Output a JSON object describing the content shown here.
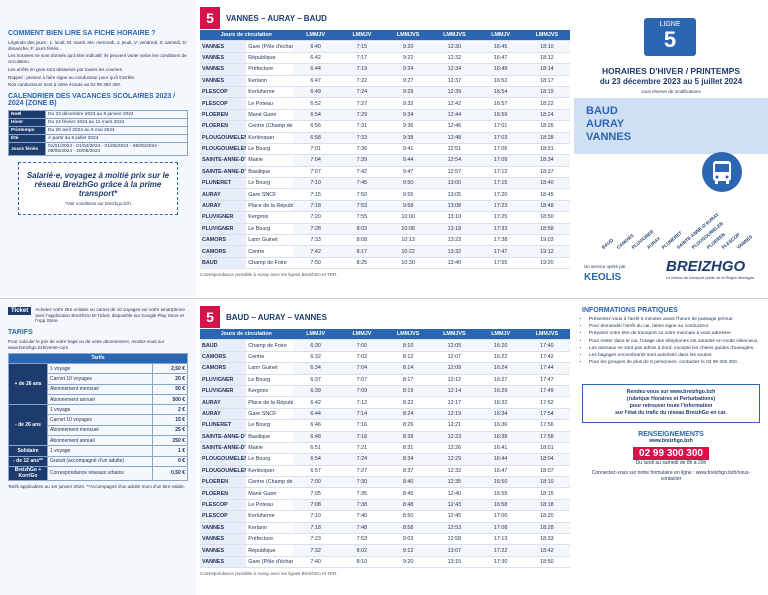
{
  "top": {
    "left": {
      "title": "COMMENT BIEN LIRE SA FICHE HORAIRE ?",
      "paragraphs": [
        "Légende des jours : L: lundi, M: mardi, Me: mercredi, J: jeudi, V: vendredi, S: samedi, D: dimanche, F: jours fériés.",
        "Les horaires ne sont donnés qu'à titre indicatif, ils peuvent varier selon les conditions de circulation.",
        "Les arrêts en gras sont desservis par toutes les courses.",
        "Rappel : pensez à faire signe au conducteur pour qu'il s'arrête.",
        "Nos conducteurs sont à votre écoute au 02 99 300 300."
      ],
      "calendar_title": "CALENDRIER DES VACANCES SCOLAIRES 2023 / 2024 (ZONE B)",
      "calendar": [
        [
          "Noël",
          "Du 23 décembre 2023 au 8 janvier 2024"
        ],
        [
          "Hiver",
          "Du 24 février 2024 au 11 mars 2024"
        ],
        [
          "Printemps",
          "Du 20 avril 2024 au 6 mai 2024"
        ],
        [
          "Été",
          "À partir du 6 juillet 2024"
        ],
        [
          "Jours fériés",
          "01/01/2024 - 01/04/2024 - 01/05/2024 - 08/05/2024 - 09/05/2024 - 20/05/2024"
        ]
      ],
      "ad": {
        "title": "Salarié·e, voyagez à moitié prix sur le réseau BreizhGo grâce à la prime transport*",
        "note": "*Voir conditions sur breizhgo.bzh"
      }
    },
    "timetable": {
      "line": "5",
      "title": "VANNES – AURAY – BAUD",
      "days_label": "Jours de circulation",
      "stops": [
        [
          "VANNES",
          "Gare (Pôle d'échanges)"
        ],
        [
          "VANNES",
          "République"
        ],
        [
          "VANNES",
          "Préfecture"
        ],
        [
          "VANNES",
          "Kerlann"
        ],
        [
          "PLESCOP",
          "Kerluherne"
        ],
        [
          "PLESCOP",
          "Le Poteau"
        ],
        [
          "PLOEREN",
          "Mané Guen"
        ],
        [
          "PLOEREN",
          "Centre (Champ de Foire)"
        ],
        [
          "PLOUGOUMELEN",
          "Kerlécquer"
        ],
        [
          "PLOUGOUMELEN",
          "Le Bourg"
        ],
        [
          "SAINTE-ANNE-D'AURAY",
          "Mairie"
        ],
        [
          "SAINTE-ANNE-D'AURAY",
          "Basilique"
        ],
        [
          "PLUNERET",
          "Le Bourg"
        ],
        [
          "AURAY",
          "Gare SNCF"
        ],
        [
          "AURAY",
          "Place de la République"
        ],
        [
          "PLUVIGNER",
          "Kergroix"
        ],
        [
          "PLUVIGNER",
          "Le Bourg"
        ],
        [
          "CAMORS",
          "Lann Guinet"
        ],
        [
          "CAMORS",
          "Centre"
        ],
        [
          "BAUD",
          "Champ de Foire"
        ]
      ],
      "courses": [
        {
          "days": "LMMJV",
          "times": [
            "6:40",
            "6:42",
            "6:44",
            "6:47",
            "6:49",
            "6:52",
            "6:54",
            "6:56",
            "6:58",
            "7:01",
            "7:04",
            "7:07",
            "7:10",
            "7:15",
            "7:18",
            "7:20",
            "7:28",
            "7:33",
            "7:42",
            "7:50"
          ]
        },
        {
          "days": "LMMJV",
          "times": [
            "7:15",
            "7:17",
            "7:19",
            "7:22",
            "7:24",
            "7:27",
            "7:29",
            "7:31",
            "7:33",
            "7:36",
            "7:39",
            "7:42",
            "7:45",
            "7:50",
            "7:53",
            "7:55",
            "8:03",
            "8:08",
            "8:17",
            "8:25"
          ]
        },
        {
          "days": "LMMJVS",
          "times": [
            "9:20",
            "9:22",
            "9:24",
            "9:27",
            "9:29",
            "9:32",
            "9:34",
            "9:36",
            "9:38",
            "9:41",
            "9:44",
            "9:47",
            "9:50",
            "9:55",
            "9:58",
            "10:00",
            "10:08",
            "10:13",
            "10:22",
            "10:30"
          ]
        },
        {
          "days": "LMMJVS",
          "times": [
            "12:30",
            "12:32",
            "12:34",
            "12:37",
            "12:39",
            "12:42",
            "12:44",
            "12:46",
            "12:48",
            "12:51",
            "12:54",
            "12:57",
            "13:00",
            "13:05",
            "13:08",
            "13:10",
            "13:18",
            "13:23",
            "13:32",
            "13:40"
          ]
        },
        {
          "days": "LMMJV",
          "times": [
            "16:45",
            "16:47",
            "16:49",
            "16:52",
            "16:54",
            "16:57",
            "16:59",
            "17:01",
            "17:03",
            "17:06",
            "17:09",
            "17:12",
            "17:15",
            "17:20",
            "17:23",
            "17:25",
            "17:33",
            "17:38",
            "17:47",
            "17:55"
          ]
        },
        {
          "days": "LMMJVS",
          "times": [
            "18:10",
            "18:12",
            "18:14",
            "18:17",
            "18:19",
            "18:22",
            "18:24",
            "18:26",
            "18:28",
            "18:31",
            "18:34",
            "18:37",
            "18:40",
            "18:45",
            "18:48",
            "18:50",
            "18:58",
            "19:03",
            "19:12",
            "19:20"
          ]
        }
      ],
      "footnote": "Correspondance possible à Auray avec les lignes BreizhGo et TER."
    },
    "cover": {
      "line_label": "LIGNE",
      "line": "5",
      "title": "HORAIRES D'HIVER / PRINTEMPS",
      "period": "du 23 décembre 2023 au 5 juillet 2024",
      "disclaimer": "sous réserve de modifications",
      "destinations": [
        "BAUD",
        "AURAY",
        "VANNES"
      ],
      "stops": [
        "BAUD",
        "CAMORS",
        "PLUVIGNER",
        "AURAY",
        "PLUNERET",
        "SAINTE-ANNE-D'AURAY",
        "PLOUGOUMELEN",
        "PLOEREN",
        "PLESCOP",
        "VANNES"
      ],
      "operator_label": "Un service opéré par",
      "operator": "KEOLIS",
      "brand": "BREIZHGO",
      "tagline": "Le réseau de transport public de la Région Bretagne"
    }
  },
  "bottom": {
    "left": {
      "ticket_title": "Ticket",
      "ticket_text": "Achetez votre titre unitaire ou carnet de 10 voyages sur votre smartphone avec l'application BreizhGo M-Ticket, disponible sur Google Play Store et l'App Store.",
      "tariffs_title": "TARIFS",
      "tariffs_text": "Pour calculer le prix de votre trajet ou de votre abonnement, rendez-vous sur www.breizhgo.bzh/vente-cars",
      "price_header": "Tarifs",
      "groups": [
        {
          "group": "+ de 26 ans",
          "items": [
            {
              "product": "1 voyage",
              "price": "2,50 €"
            },
            {
              "product": "Carnet 10 voyages",
              "price": "20 €"
            },
            {
              "product": "Abonnement mensuel",
              "price": "50 €"
            },
            {
              "product": "Abonnement annuel",
              "price": "500 €"
            }
          ]
        },
        {
          "group": "- de 26 ans",
          "items": [
            {
              "product": "1 voyage",
              "price": "2 €"
            },
            {
              "product": "Carnet 10 voyages",
              "price": "15 €"
            },
            {
              "product": "Abonnement mensuel",
              "price": "25 €"
            },
            {
              "product": "Abonnement annuel",
              "price": "250 €"
            }
          ]
        },
        {
          "group": "Solidaire",
          "items": [
            {
              "product": "1 voyage",
              "price": "1 €"
            }
          ]
        },
        {
          "group": "- de 12 ans**",
          "items": [
            {
              "product": "Gratuit (accompagné d'un adulte)",
              "price": "0 €"
            }
          ]
        },
        {
          "group": "BreizhGo + KorriGo",
          "items": [
            {
              "product": "Correspondance réseaux urbains",
              "price": "0,50 €"
            }
          ]
        }
      ],
      "footnote": "Tarifs applicables au 1er janvier 2024. **Accompagné d'un adulte muni d'un titre valide."
    },
    "timetable": {
      "line": "5",
      "title": "BAUD – AURAY – VANNES",
      "days_label": "Jours de circulation",
      "stops": [
        [
          "BAUD",
          "Champ de Foire"
        ],
        [
          "CAMORS",
          "Centre"
        ],
        [
          "CAMORS",
          "Lann Guinet"
        ],
        [
          "PLUVIGNER",
          "Le Bourg"
        ],
        [
          "PLUVIGNER",
          "Kergroix"
        ],
        [
          "AURAY",
          "Place de la République"
        ],
        [
          "AURAY",
          "Gare SNCF"
        ],
        [
          "PLUNERET",
          "Le Bourg"
        ],
        [
          "SAINTE-ANNE-D'AURAY",
          "Basilique"
        ],
        [
          "SAINTE-ANNE-D'AURAY",
          "Mairie"
        ],
        [
          "PLOUGOUMELEN",
          "Le Bourg"
        ],
        [
          "PLOUGOUMELEN",
          "Kerlécquer"
        ],
        [
          "PLOEREN",
          "Centre (Champ de Foire)"
        ],
        [
          "PLOEREN",
          "Mané Guen"
        ],
        [
          "PLESCOP",
          "Le Poteau"
        ],
        [
          "PLESCOP",
          "Kerluherne"
        ],
        [
          "VANNES",
          "Kerlann"
        ],
        [
          "VANNES",
          "Préfecture"
        ],
        [
          "VANNES",
          "République"
        ],
        [
          "VANNES",
          "Gare (Pôle d'échanges)"
        ]
      ],
      "courses": [
        {
          "days": "LMMJV",
          "times": [
            "6:30",
            "6:32",
            "6:34",
            "6:37",
            "6:39",
            "6:42",
            "6:44",
            "6:46",
            "6:48",
            "6:51",
            "6:54",
            "6:57",
            "7:00",
            "7:05",
            "7:08",
            "7:10",
            "7:18",
            "7:23",
            "7:32",
            "7:40"
          ]
        },
        {
          "days": "LMMJV",
          "times": [
            "7:00",
            "7:02",
            "7:04",
            "7:07",
            "7:09",
            "7:12",
            "7:14",
            "7:16",
            "7:18",
            "7:21",
            "7:24",
            "7:27",
            "7:30",
            "7:35",
            "7:38",
            "7:40",
            "7:48",
            "7:53",
            "8:02",
            "8:10"
          ]
        },
        {
          "days": "LMMJVS",
          "times": [
            "8:10",
            "8:12",
            "8:14",
            "8:17",
            "8:19",
            "8:22",
            "8:24",
            "8:26",
            "8:28",
            "8:31",
            "8:34",
            "8:37",
            "8:40",
            "8:45",
            "8:48",
            "8:50",
            "8:58",
            "9:03",
            "9:12",
            "9:20"
          ]
        },
        {
          "days": "LMMJVS",
          "times": [
            "12:05",
            "12:07",
            "12:09",
            "12:12",
            "12:14",
            "12:17",
            "12:19",
            "12:21",
            "12:23",
            "12:26",
            "12:29",
            "12:32",
            "12:35",
            "12:40",
            "12:43",
            "12:45",
            "12:53",
            "12:58",
            "13:07",
            "13:15"
          ]
        },
        {
          "days": "LMMJV",
          "times": [
            "16:20",
            "16:22",
            "16:24",
            "16:27",
            "16:29",
            "16:32",
            "16:34",
            "16:36",
            "16:38",
            "16:41",
            "16:44",
            "16:47",
            "16:50",
            "16:55",
            "16:58",
            "17:00",
            "17:08",
            "17:13",
            "17:22",
            "17:30"
          ]
        },
        {
          "days": "LMMJVS",
          "times": [
            "17:40",
            "17:42",
            "17:44",
            "17:47",
            "17:49",
            "17:52",
            "17:54",
            "17:56",
            "17:58",
            "18:01",
            "18:04",
            "18:07",
            "18:10",
            "18:15",
            "18:18",
            "18:20",
            "18:28",
            "18:33",
            "18:42",
            "18:50"
          ]
        }
      ],
      "footnote": "Correspondance possible à Auray avec les lignes BreizhGo et TER."
    },
    "right": {
      "info_title": "INFORMATIONS PRATIQUES",
      "items": [
        "Présentez-vous à l'arrêt 5 minutes avant l'heure de passage prévue.",
        "Pour demander l'arrêt du car, faites signe au conducteur.",
        "Préparez votre titre de transport ou votre monnaie à vous adresser.",
        "Pour rester dans le car, l'usage des téléphones est autorisé en mode silencieux.",
        "Les animaux ne sont pas admis à bord, excepté les chiens guides d'aveugles.",
        "Les bagages encombrants sont autorisés dans les soutes.",
        "Pour les groupes de plus de 8 personnes, contactez le 02 99 300 300."
      ],
      "box": [
        "Rendez-vous sur www.breizhgo.bzh",
        "(rubrique Horaires et Perturbations)",
        "pour retrouver toute l'information",
        "sur l'état du trafic du réseau BreizhGo en car."
      ],
      "contact_title": "RENSEIGNEMENTS",
      "website": "www.breizhgo.bzh",
      "phone": "02 99 300 300",
      "hours": "Du lundi au samedi de 8h à 20h",
      "contact_text": "Connectez-vous sur notre formulaire en ligne : www.breizhgo.bzh/nous-contacter"
    }
  }
}
